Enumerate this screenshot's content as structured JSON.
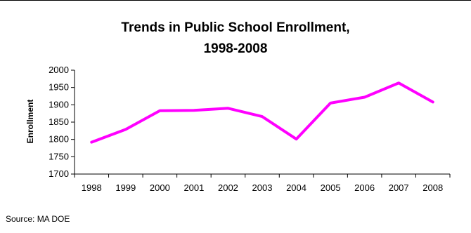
{
  "chart_data": {
    "type": "line",
    "title_line1": "Trends in Public School Enrollment,",
    "title_line2": "1998-2008",
    "xlabel": "",
    "ylabel": "Enrollment",
    "categories": [
      "1998",
      "1999",
      "2000",
      "2001",
      "2002",
      "2003",
      "2004",
      "2005",
      "2006",
      "2007",
      "2008"
    ],
    "series": [
      {
        "values": [
          1792,
          1829,
          1883,
          1884,
          1890,
          1866,
          1801,
          1905,
          1922,
          1963,
          1908
        ]
      }
    ],
    "ylim": [
      1700,
      2000
    ],
    "yticks": [
      "1700",
      "1750",
      "1800",
      "1850",
      "1900",
      "1950",
      "2000"
    ],
    "grid": false,
    "line_color": "#ff00ff"
  },
  "source": "Source: MA DOE"
}
